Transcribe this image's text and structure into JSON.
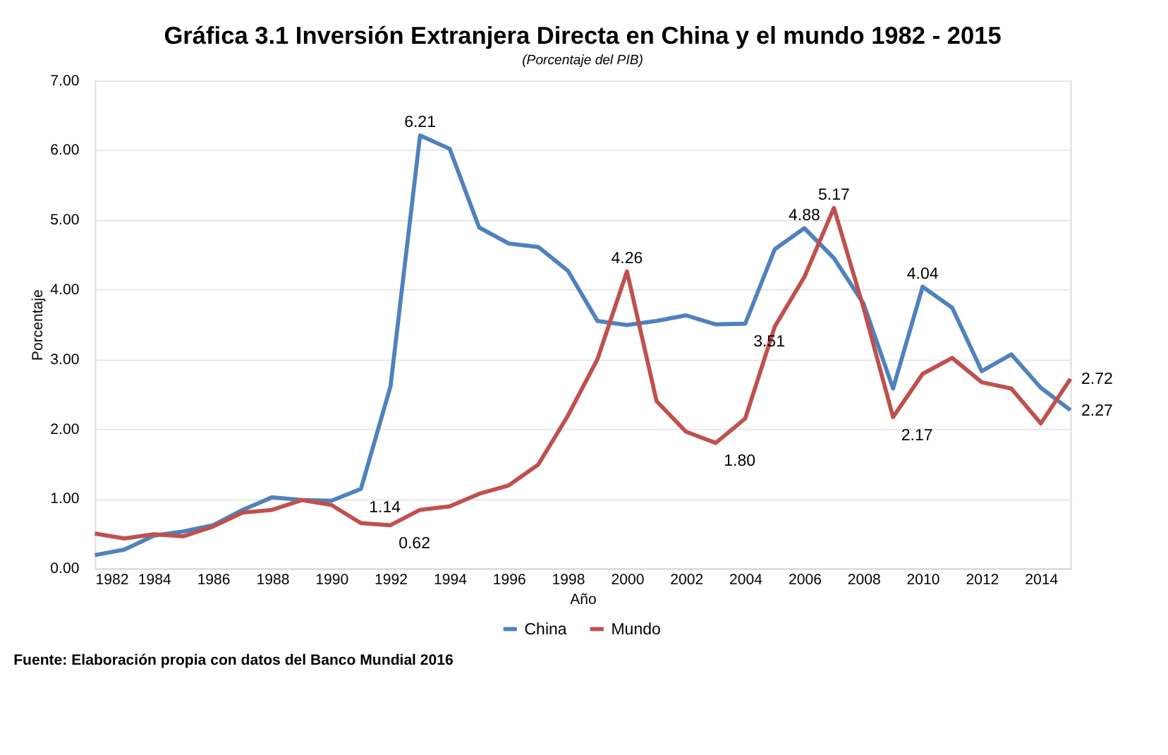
{
  "chart_data": {
    "type": "line",
    "title": "Gráfica 3.1 Inversión Extranjera Directa en China y el mundo 1982 - 2015",
    "subtitle": "(Porcentaje del PIB)",
    "xlabel": "Año",
    "ylabel": "Porcentaje",
    "x": [
      1982,
      1983,
      1984,
      1985,
      1986,
      1987,
      1988,
      1989,
      1990,
      1991,
      1992,
      1993,
      1994,
      1995,
      1996,
      1997,
      1998,
      1999,
      2000,
      2001,
      2002,
      2003,
      2004,
      2005,
      2006,
      2007,
      2008,
      2009,
      2010,
      2011,
      2012,
      2013,
      2014,
      2015
    ],
    "series": [
      {
        "name": "China",
        "color": "#4f81bd",
        "values": [
          0.19,
          0.27,
          0.47,
          0.53,
          0.62,
          0.84,
          1.02,
          0.98,
          0.97,
          1.14,
          2.61,
          6.21,
          6.02,
          4.89,
          4.66,
          4.61,
          4.27,
          3.55,
          3.49,
          3.55,
          3.63,
          3.5,
          3.51,
          4.58,
          4.88,
          4.45,
          3.8,
          2.58,
          4.04,
          3.74,
          2.83,
          3.07,
          2.59,
          2.27
        ],
        "value_labels": [
          null,
          null,
          null,
          null,
          null,
          null,
          null,
          null,
          null,
          "1.14",
          null,
          "6.21",
          null,
          null,
          null,
          null,
          null,
          null,
          null,
          null,
          null,
          null,
          "3.51",
          null,
          "4.88",
          null,
          null,
          null,
          "4.04",
          null,
          null,
          null,
          null,
          "2.27"
        ]
      },
      {
        "name": "Mundo",
        "color": "#c0504d",
        "values": [
          0.5,
          0.43,
          0.49,
          0.46,
          0.6,
          0.8,
          0.84,
          0.98,
          0.91,
          0.65,
          0.62,
          0.84,
          0.89,
          1.07,
          1.19,
          1.49,
          2.19,
          3.0,
          4.26,
          2.4,
          1.96,
          1.8,
          2.15,
          3.47,
          4.18,
          5.17,
          3.74,
          2.17,
          2.79,
          3.02,
          2.67,
          2.58,
          2.08,
          2.72
        ],
        "value_labels": [
          null,
          null,
          null,
          null,
          null,
          null,
          null,
          null,
          null,
          null,
          "0.62",
          null,
          null,
          null,
          null,
          null,
          null,
          null,
          "4.26",
          null,
          null,
          "1.80",
          null,
          null,
          null,
          "5.17",
          null,
          "2.17",
          null,
          null,
          null,
          null,
          null,
          "2.72"
        ]
      }
    ],
    "xlim": [
      1982,
      2015
    ],
    "xticks": [
      1982,
      1984,
      1986,
      1988,
      1990,
      1992,
      1994,
      1996,
      1998,
      2000,
      2002,
      2004,
      2006,
      2008,
      2010,
      2012,
      2014
    ],
    "ylim": [
      0,
      7
    ],
    "yticks": [
      {
        "value": 0,
        "label": "0.00"
      },
      {
        "value": 1,
        "label": "1.00"
      },
      {
        "value": 2,
        "label": "2.00"
      },
      {
        "value": 3,
        "label": "3.00"
      },
      {
        "value": 4,
        "label": "4.00"
      },
      {
        "value": 5,
        "label": "5.00"
      },
      {
        "value": 6,
        "label": "6.00"
      },
      {
        "value": 7,
        "label": "7.00"
      }
    ],
    "grid": "y",
    "legend": "bottom",
    "marker": "none",
    "line_style": "solid",
    "annotations": [
      "Fuente: Elaboración propia  con datos del Banco Mundial 2016"
    ]
  }
}
